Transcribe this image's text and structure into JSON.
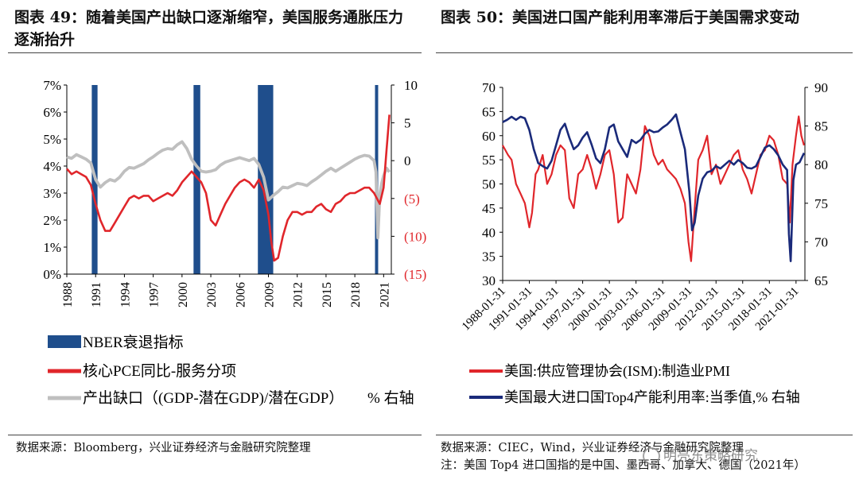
{
  "left": {
    "title": "图表 49：随着美国产出缺口逐渐缩窄，美国服务通胀压力逐渐抬升",
    "source": "数据来源：Bloomberg，兴业证券经济与金融研究院整理",
    "legend": {
      "recession": "NBER衰退指标",
      "pce": "核心PCE同比-服务分项",
      "gap": "产出缺口（(GDP-潜在GDP)/潜在GDP）",
      "gap_unit": "% 右轴"
    },
    "colors": {
      "recession": "#1F4E8C",
      "pce": "#E0262B",
      "gap": "#BFBFBF",
      "axis_neg": "#E0262B"
    }
  },
  "right": {
    "title": "图表 50：美国进口国产能利用率滞后于美国需求变动",
    "source": "数据来源：CIEC，Wind，兴业证券经济与金融研究院整理",
    "note": "注：美国 Top4 进口国指的是中国、墨西哥、加拿大、德国（2021年）",
    "watermark": "明亮东策略研究",
    "legend": {
      "ism": "美国:供应管理协会(ISM):制造业PMI",
      "cap": "美国最大进口国Top4产能利用率:当季值,% 右轴"
    },
    "colors": {
      "ism": "#E0262B",
      "cap": "#1A2A7A"
    }
  },
  "chart_data": [
    {
      "type": "line",
      "title": "图表 49：随着美国产出缺口逐渐缩窄，美国服务通胀压力逐渐抬升",
      "x_ticks": [
        "1988",
        "1991",
        "1994",
        "1997",
        "2000",
        "2003",
        "2006",
        "2009",
        "2012",
        "2015",
        "2018",
        "2021"
      ],
      "xlim": [
        1988.0,
        2021.8
      ],
      "y_left_ticks": [
        "0%",
        "1%",
        "2%",
        "3%",
        "4%",
        "5%",
        "6%",
        "7%"
      ],
      "ylim_left": [
        0,
        7
      ],
      "y_right_ticks": [
        "10",
        "5",
        "0",
        "(5)",
        "(10)",
        "(15)"
      ],
      "ylim_right": [
        -15,
        10
      ],
      "recessions": [
        [
          1990.6,
          1991.2
        ],
        [
          2001.2,
          2001.9
        ],
        [
          2007.9,
          2009.5
        ],
        [
          2020.1,
          2020.4
        ]
      ],
      "series": [
        {
          "name": "核心PCE同比-服务分项",
          "axis": "left",
          "x": [
            1988.0,
            1988.5,
            1989.0,
            1989.5,
            1990.0,
            1990.5,
            1991.0,
            1991.5,
            1992.0,
            1992.5,
            1993.0,
            1993.5,
            1994.0,
            1994.5,
            1995.0,
            1995.5,
            1996.0,
            1996.5,
            1997.0,
            1997.5,
            1998.0,
            1998.5,
            1999.0,
            1999.5,
            2000.0,
            2000.5,
            2001.0,
            2001.5,
            2002.0,
            2002.5,
            2003.0,
            2003.5,
            2004.0,
            2004.5,
            2005.0,
            2005.5,
            2006.0,
            2006.5,
            2007.0,
            2007.5,
            2008.0,
            2008.5,
            2009.0,
            2009.3,
            2009.6,
            2010.0,
            2010.5,
            2011.0,
            2011.5,
            2012.0,
            2012.5,
            2013.0,
            2013.5,
            2014.0,
            2014.5,
            2015.0,
            2015.5,
            2016.0,
            2016.5,
            2017.0,
            2017.5,
            2018.0,
            2018.5,
            2019.0,
            2019.5,
            2020.0,
            2020.3,
            2020.6,
            2021.0,
            2021.3,
            2021.6
          ],
          "values": [
            3.9,
            3.7,
            3.8,
            3.7,
            3.6,
            3.3,
            2.6,
            2.0,
            1.6,
            1.6,
            1.9,
            2.2,
            2.5,
            2.8,
            2.9,
            2.8,
            2.9,
            2.9,
            2.7,
            2.8,
            2.9,
            3.0,
            2.9,
            3.1,
            3.4,
            3.6,
            3.8,
            3.6,
            3.4,
            3.0,
            2.0,
            1.8,
            2.2,
            2.6,
            2.9,
            3.2,
            3.4,
            3.5,
            3.4,
            3.2,
            3.5,
            3.1,
            2.2,
            1.2,
            0.5,
            0.6,
            1.4,
            2.0,
            2.3,
            2.3,
            2.2,
            2.3,
            2.3,
            2.5,
            2.6,
            2.4,
            2.3,
            2.6,
            2.7,
            2.9,
            3.0,
            3.0,
            3.1,
            3.2,
            3.2,
            3.0,
            2.8,
            2.6,
            3.2,
            4.6,
            5.9
          ]
        },
        {
          "name": "产出缺口（(GDP-潜在GDP)/潜在GDP）",
          "axis": "right",
          "x": [
            1988.0,
            1988.5,
            1989.0,
            1989.5,
            1990.0,
            1990.5,
            1991.0,
            1991.5,
            1992.0,
            1992.5,
            1993.0,
            1993.5,
            1994.0,
            1994.5,
            1995.0,
            1995.5,
            1996.0,
            1996.5,
            1997.0,
            1997.5,
            1998.0,
            1998.5,
            1999.0,
            1999.5,
            2000.0,
            2000.5,
            2001.0,
            2001.5,
            2002.0,
            2002.5,
            2003.0,
            2003.5,
            2004.0,
            2004.5,
            2005.0,
            2005.5,
            2006.0,
            2006.5,
            2007.0,
            2007.5,
            2008.0,
            2008.5,
            2009.0,
            2009.5,
            2010.0,
            2010.5,
            2011.0,
            2011.5,
            2012.0,
            2012.5,
            2013.0,
            2013.5,
            2014.0,
            2014.5,
            2015.0,
            2015.5,
            2016.0,
            2016.5,
            2017.0,
            2017.5,
            2018.0,
            2018.5,
            2019.0,
            2019.5,
            2020.0,
            2020.2,
            2020.4,
            2020.6,
            2020.8,
            2021.0,
            2021.3,
            2021.6
          ],
          "values": [
            0.5,
            0.3,
            0.8,
            0.5,
            0.2,
            -0.3,
            -2.5,
            -3.5,
            -2.9,
            -2.5,
            -2.7,
            -2.2,
            -1.4,
            -0.9,
            -1.0,
            -0.7,
            -0.4,
            0.1,
            0.5,
            1.0,
            1.4,
            1.6,
            1.5,
            2.1,
            2.5,
            1.6,
            0.2,
            -0.7,
            -1.4,
            -1.5,
            -1.4,
            -1.2,
            -0.6,
            -0.2,
            0.0,
            0.2,
            0.4,
            0.2,
            0.0,
            0.3,
            -0.5,
            -2.2,
            -5.2,
            -4.6,
            -4.1,
            -3.5,
            -3.6,
            -3.3,
            -3.0,
            -3.1,
            -3.3,
            -2.8,
            -2.4,
            -1.9,
            -1.4,
            -1.0,
            -1.4,
            -1.0,
            -0.6,
            -0.2,
            0.2,
            0.5,
            0.7,
            0.6,
            0.0,
            -1.5,
            -10.2,
            -4.5,
            -3.0,
            -2.0,
            -1.0,
            -1.5
          ]
        }
      ]
    },
    {
      "type": "line",
      "title": "图表 50：美国进口国产能利用率滞后于美国需求变动",
      "x_ticks": [
        "1988-01-31",
        "1991-01-31",
        "1994-01-31",
        "1997-01-31",
        "2000-01-31",
        "2003-01-31",
        "2006-01-31",
        "2009-01-31",
        "2012-01-31",
        "2015-01-31",
        "2018-01-31",
        "2021-01-31"
      ],
      "xlim": [
        1988.0,
        2022.0
      ],
      "y_left_ticks": [
        "30",
        "35",
        "40",
        "45",
        "50",
        "55",
        "60",
        "65",
        "70"
      ],
      "ylim_left": [
        30,
        70
      ],
      "y_right_ticks": [
        "65",
        "70",
        "75",
        "80",
        "85",
        "90"
      ],
      "ylim_right": [
        65,
        90
      ],
      "series": [
        {
          "name": "美国:供应管理协会(ISM):制造业PMI",
          "axis": "left",
          "x": [
            1988.0,
            1988.3,
            1988.6,
            1989.0,
            1989.5,
            1990.0,
            1990.5,
            1991.0,
            1991.3,
            1991.7,
            1992.0,
            1992.5,
            1993.0,
            1993.5,
            1994.0,
            1994.5,
            1995.0,
            1995.5,
            1996.0,
            1996.5,
            1997.0,
            1997.5,
            1998.0,
            1998.5,
            1999.0,
            1999.5,
            2000.0,
            2000.5,
            2001.0,
            2001.5,
            2002.0,
            2002.5,
            2003.0,
            2003.5,
            2004.0,
            2004.5,
            2005.0,
            2005.5,
            2006.0,
            2006.5,
            2007.0,
            2007.5,
            2008.0,
            2008.5,
            2008.9,
            2009.2,
            2009.6,
            2010.0,
            2010.5,
            2011.0,
            2011.5,
            2012.0,
            2012.5,
            2013.0,
            2013.5,
            2014.0,
            2014.5,
            2015.0,
            2015.5,
            2016.0,
            2016.5,
            2017.0,
            2017.5,
            2018.0,
            2018.5,
            2019.0,
            2019.5,
            2020.0,
            2020.3,
            2020.6,
            2021.0,
            2021.3,
            2021.6,
            2021.9
          ],
          "values": [
            58,
            57,
            56,
            55,
            50,
            48,
            46,
            41,
            44,
            52,
            53,
            56,
            50,
            52,
            56,
            58,
            57,
            47,
            45,
            52,
            53,
            56,
            53,
            49,
            52,
            56,
            57,
            52,
            42,
            43,
            52,
            50,
            48,
            53,
            62,
            60,
            56,
            54,
            55,
            53,
            52,
            51,
            49,
            46,
            38,
            34,
            45,
            55,
            57,
            60,
            52,
            54,
            50,
            52,
            54,
            56,
            57,
            53,
            51,
            48,
            52,
            56,
            57,
            60,
            59,
            56,
            51,
            50,
            42,
            54,
            60,
            64,
            60,
            58
          ]
        },
        {
          "name": "美国最大进口国Top4产能利用率:当季值,% 右轴",
          "axis": "right",
          "x": [
            1988.0,
            1988.5,
            1989.0,
            1989.5,
            1990.0,
            1990.5,
            1991.0,
            1991.5,
            1992.0,
            1992.5,
            1993.0,
            1993.5,
            1994.0,
            1994.5,
            1995.0,
            1995.5,
            1996.0,
            1996.5,
            1997.0,
            1997.5,
            1998.0,
            1998.5,
            1999.0,
            1999.5,
            2000.0,
            2000.5,
            2001.0,
            2001.5,
            2002.0,
            2002.5,
            2003.0,
            2003.5,
            2004.0,
            2004.5,
            2005.0,
            2005.5,
            2006.0,
            2006.5,
            2007.0,
            2007.5,
            2008.0,
            2008.5,
            2009.0,
            2009.3,
            2009.6,
            2010.0,
            2010.5,
            2011.0,
            2011.5,
            2012.0,
            2012.5,
            2013.0,
            2013.5,
            2014.0,
            2014.5,
            2015.0,
            2015.5,
            2016.0,
            2016.5,
            2017.0,
            2017.5,
            2018.0,
            2018.5,
            2019.0,
            2019.5,
            2020.0,
            2020.2,
            2020.4,
            2020.7,
            2021.0,
            2021.4,
            2021.9
          ],
          "values": [
            85.5,
            85.8,
            86.2,
            85.8,
            86.2,
            86.0,
            84.5,
            82.0,
            80.2,
            79.8,
            79.5,
            80.5,
            82.5,
            84.5,
            85.3,
            83.5,
            82.0,
            82.5,
            83.5,
            84.2,
            82.6,
            80.8,
            80.2,
            82.0,
            84.8,
            85.2,
            83.0,
            82.0,
            81.0,
            83.2,
            82.8,
            83.2,
            84.0,
            84.5,
            84.2,
            84.3,
            84.8,
            85.2,
            85.8,
            86.5,
            84.2,
            82.0,
            76.5,
            71.5,
            72.5,
            76.0,
            78.2,
            79.0,
            79.2,
            79.8,
            79.5,
            80.0,
            80.5,
            80.0,
            80.6,
            80.2,
            79.6,
            79.5,
            79.8,
            81.0,
            82.2,
            82.5,
            82.0,
            81.2,
            80.0,
            79.3,
            71.0,
            67.5,
            78.0,
            80.0,
            80.3,
            81.5
          ]
        }
      ]
    }
  ]
}
